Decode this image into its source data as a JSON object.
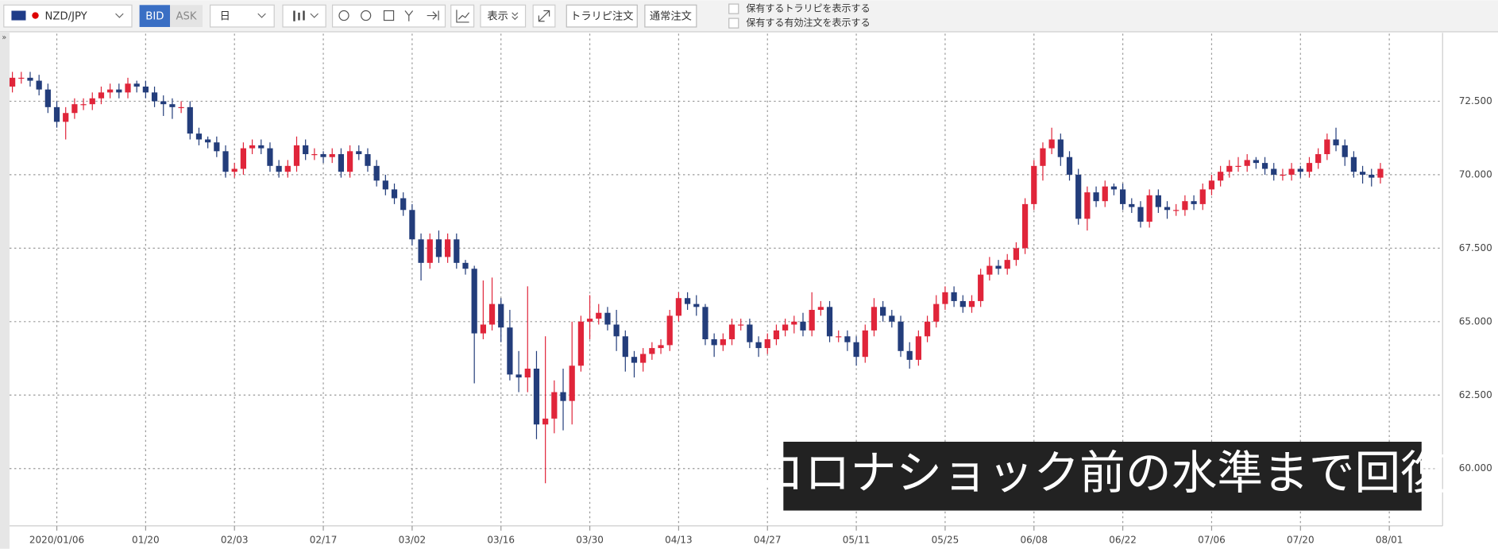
{
  "toolbar": {
    "symbol": "NZD/JPY",
    "bid": "BID",
    "ask": "ASK",
    "period": "日",
    "display": "表示",
    "buttons": [
      "トラリピ注文",
      "通常注文"
    ],
    "checkboxes": [
      "保有するトラリピを表示する",
      "保有する有効注文を表示する"
    ]
  },
  "chart_data": {
    "type": "candlestick",
    "up_color": "#e0253a",
    "down_color": "#233d7b",
    "grid": true,
    "annotation": "コロナショック前の水準まで回復",
    "xlim": [
      -0.32,
      161
    ],
    "ylim": [
      58.05,
      74.8
    ],
    "xticks": [
      {
        "value": 5,
        "label": "2020/01/06"
      },
      {
        "value": 15,
        "label": "01/20"
      },
      {
        "value": 25,
        "label": "02/03"
      },
      {
        "value": 35,
        "label": "02/17"
      },
      {
        "value": 45,
        "label": "03/02"
      },
      {
        "value": 55,
        "label": "03/16"
      },
      {
        "value": 65,
        "label": "03/30"
      },
      {
        "value": 75,
        "label": "04/13"
      },
      {
        "value": 85,
        "label": "04/27"
      },
      {
        "value": 95,
        "label": "05/11"
      },
      {
        "value": 105,
        "label": "05/25"
      },
      {
        "value": 115,
        "label": "06/08"
      },
      {
        "value": 125,
        "label": "06/22"
      },
      {
        "value": 135,
        "label": "07/06"
      },
      {
        "value": 145,
        "label": "07/20"
      },
      {
        "value": 155,
        "label": "08/01"
      }
    ],
    "yticks": [
      {
        "value": 60,
        "label": "60.000"
      },
      {
        "value": 62.5,
        "label": "62.500"
      },
      {
        "value": 65,
        "label": "65.000"
      },
      {
        "value": 67.5,
        "label": "67.500"
      },
      {
        "value": 70,
        "label": "70.000"
      },
      {
        "value": 72.5,
        "label": "72.500"
      }
    ],
    "open": [
      73.0,
      73.3,
      73.3,
      73.2,
      72.9,
      72.3,
      71.8,
      72.1,
      72.4,
      72.4,
      72.6,
      72.8,
      72.9,
      72.8,
      73.1,
      73.0,
      72.8,
      72.5,
      72.4,
      72.3,
      72.3,
      71.4,
      71.2,
      71.1,
      70.8,
      70.1,
      70.2,
      70.9,
      71.0,
      70.9,
      70.3,
      70.1,
      70.3,
      71.0,
      70.7,
      70.7,
      70.6,
      70.7,
      70.1,
      70.8,
      70.7,
      70.3,
      69.8,
      69.5,
      69.2,
      68.8,
      67.8,
      67.0,
      67.8,
      67.2,
      67.8,
      67.0,
      66.8,
      64.6,
      64.9,
      65.6,
      64.8,
      63.2,
      63.1,
      63.4,
      61.5,
      61.7,
      62.6,
      62.3,
      63.5,
      65.0,
      65.1,
      65.3,
      64.9,
      64.5,
      63.8,
      63.6,
      63.9,
      64.1,
      64.2,
      65.2,
      65.8,
      65.6,
      65.5,
      64.4,
      64.2,
      64.4,
      64.9,
      64.9,
      64.3,
      64.1,
      64.4,
      64.7,
      64.9,
      65.0,
      64.7,
      65.4,
      65.5,
      64.5,
      64.5,
      64.3,
      63.8,
      64.7,
      65.5,
      65.2,
      65.0,
      64.0,
      63.7,
      64.5,
      65.0,
      65.6,
      66.0,
      65.7,
      65.5,
      65.7,
      66.6,
      66.9,
      66.8,
      67.1,
      67.5,
      69.0,
      70.3,
      70.9,
      71.2,
      70.6,
      70.0,
      68.5,
      69.4,
      69.1,
      69.6,
      69.5,
      69.0,
      68.9,
      68.4,
      69.3,
      68.9,
      68.8,
      68.8,
      69.1,
      69.0,
      69.5,
      69.8,
      70.1,
      70.3,
      70.3,
      70.5,
      70.4,
      70.2,
      70.0,
      70.0,
      70.2,
      70.1,
      70.4,
      70.7,
      71.2,
      71.0,
      70.6,
      70.1,
      70.0,
      69.9
    ],
    "high": [
      73.5,
      73.5,
      73.5,
      73.4,
      73.1,
      72.5,
      72.3,
      72.6,
      72.6,
      72.8,
      73.0,
      73.1,
      73.1,
      73.3,
      73.2,
      73.2,
      73.0,
      72.7,
      72.6,
      72.5,
      72.5,
      71.6,
      71.3,
      71.3,
      71.0,
      70.4,
      71.1,
      71.2,
      71.2,
      71.1,
      70.5,
      70.5,
      71.3,
      71.2,
      70.9,
      70.8,
      70.9,
      70.9,
      71.0,
      71.0,
      70.9,
      70.5,
      70.0,
      69.7,
      69.4,
      69.0,
      68.0,
      68.0,
      68.1,
      68.0,
      68.0,
      67.1,
      66.9,
      66.4,
      66.5,
      65.8,
      65.4,
      64.0,
      66.2,
      64.0,
      64.5,
      63.0,
      63.4,
      65.0,
      65.2,
      65.9,
      65.6,
      65.5,
      65.4,
      64.7,
      64.0,
      64.1,
      64.3,
      64.4,
      65.4,
      66.0,
      66.0,
      65.9,
      65.6,
      64.6,
      64.6,
      65.1,
      65.1,
      65.1,
      64.5,
      64.6,
      64.9,
      65.1,
      65.2,
      65.3,
      66.0,
      65.7,
      65.7,
      64.7,
      64.7,
      64.5,
      64.9,
      65.8,
      65.7,
      65.4,
      65.2,
      64.3,
      64.7,
      65.2,
      65.9,
      66.2,
      66.2,
      65.9,
      65.9,
      66.8,
      67.2,
      67.1,
      67.3,
      67.7,
      69.2,
      70.5,
      71.1,
      71.6,
      71.4,
      70.8,
      70.2,
      69.6,
      69.6,
      69.8,
      69.7,
      69.7,
      69.2,
      69.1,
      69.5,
      69.5,
      69.1,
      69.0,
      69.3,
      69.3,
      69.7,
      70.0,
      70.3,
      70.5,
      70.6,
      70.7,
      70.6,
      70.6,
      70.4,
      70.2,
      70.4,
      70.3,
      70.6,
      70.9,
      71.4,
      71.6,
      71.2,
      70.8,
      70.3,
      70.2,
      70.4
    ],
    "low": [
      72.8,
      73.1,
      73.0,
      72.7,
      72.1,
      71.6,
      71.2,
      71.9,
      72.2,
      72.2,
      72.4,
      72.6,
      72.6,
      72.6,
      72.8,
      72.6,
      72.3,
      72.0,
      71.9,
      72.1,
      71.2,
      71.0,
      70.9,
      70.6,
      69.9,
      69.9,
      70.0,
      70.7,
      70.7,
      70.1,
      69.9,
      69.9,
      70.1,
      70.5,
      70.5,
      70.4,
      70.4,
      69.9,
      69.9,
      70.5,
      70.1,
      69.6,
      69.3,
      69.0,
      68.6,
      67.6,
      66.4,
      66.8,
      67.0,
      67.0,
      66.8,
      66.6,
      62.9,
      64.4,
      64.7,
      64.3,
      63.0,
      62.6,
      62.6,
      61.0,
      59.5,
      61.2,
      61.3,
      61.5,
      63.3,
      64.4,
      64.9,
      64.7,
      64.0,
      63.3,
      63.1,
      63.3,
      63.7,
      63.9,
      64.0,
      65.0,
      65.4,
      65.2,
      64.2,
      63.8,
      64.0,
      64.2,
      64.7,
      64.1,
      63.8,
      63.9,
      64.2,
      64.5,
      64.6,
      64.5,
      64.5,
      65.2,
      64.3,
      64.3,
      64.0,
      63.5,
      63.6,
      64.5,
      65.0,
      64.8,
      63.8,
      63.4,
      63.5,
      64.3,
      64.8,
      65.4,
      65.5,
      65.3,
      65.3,
      65.5,
      66.4,
      66.6,
      66.6,
      66.9,
      67.3,
      68.8,
      69.8,
      70.7,
      70.3,
      69.8,
      68.3,
      68.1,
      68.9,
      68.9,
      69.3,
      68.8,
      68.7,
      68.2,
      68.2,
      68.7,
      68.5,
      68.6,
      68.6,
      68.8,
      68.8,
      69.3,
      69.6,
      69.9,
      70.1,
      70.1,
      70.2,
      70.0,
      69.8,
      69.8,
      69.8,
      69.9,
      69.9,
      70.2,
      70.5,
      70.8,
      70.3,
      69.9,
      69.7,
      69.6,
      69.7
    ],
    "close": [
      73.3,
      73.3,
      73.2,
      72.9,
      72.3,
      71.8,
      72.1,
      72.4,
      72.4,
      72.6,
      72.8,
      72.9,
      72.8,
      73.1,
      73.0,
      72.8,
      72.5,
      72.4,
      72.3,
      72.3,
      71.4,
      71.2,
      71.1,
      70.8,
      70.1,
      70.2,
      70.9,
      71.0,
      70.9,
      70.3,
      70.1,
      70.3,
      71.0,
      70.7,
      70.7,
      70.6,
      70.7,
      70.1,
      70.8,
      70.7,
      70.3,
      69.8,
      69.5,
      69.2,
      68.8,
      67.8,
      67.0,
      67.8,
      67.2,
      67.8,
      67.0,
      66.8,
      64.6,
      64.9,
      65.6,
      64.8,
      63.2,
      63.1,
      63.4,
      61.5,
      61.7,
      62.6,
      62.3,
      63.5,
      65.0,
      65.1,
      65.3,
      64.9,
      64.5,
      63.8,
      63.6,
      63.9,
      64.1,
      64.2,
      65.2,
      65.8,
      65.6,
      65.5,
      64.4,
      64.2,
      64.4,
      64.9,
      64.9,
      64.3,
      64.1,
      64.4,
      64.7,
      64.9,
      65.0,
      64.7,
      65.4,
      65.5,
      64.5,
      64.5,
      64.3,
      63.8,
      64.7,
      65.5,
      65.2,
      65.0,
      64.0,
      63.7,
      64.5,
      65.0,
      65.6,
      66.0,
      65.7,
      65.5,
      65.7,
      66.6,
      66.9,
      66.8,
      67.1,
      67.5,
      69.0,
      70.3,
      70.9,
      71.2,
      70.6,
      70.0,
      68.5,
      69.4,
      69.1,
      69.6,
      69.5,
      69.0,
      68.9,
      68.4,
      69.3,
      68.9,
      68.8,
      68.8,
      69.1,
      69.0,
      69.5,
      69.8,
      70.1,
      70.3,
      70.3,
      70.5,
      70.4,
      70.2,
      70.0,
      70.0,
      70.2,
      70.1,
      70.4,
      70.7,
      71.2,
      71.0,
      70.6,
      70.1,
      70.0,
      69.9,
      70.2
    ]
  }
}
